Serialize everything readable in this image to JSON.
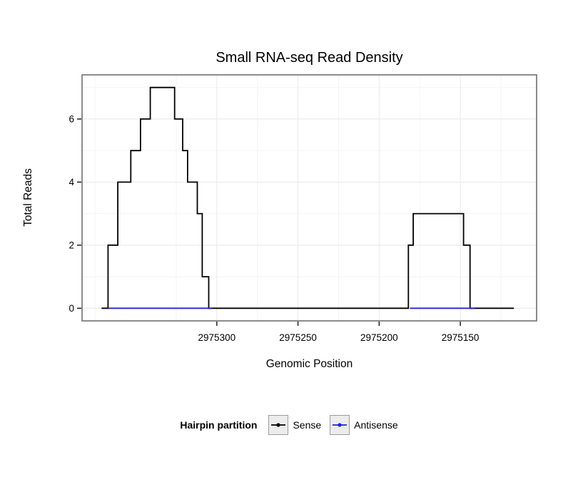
{
  "page": {
    "background": "#ffffff"
  },
  "title": "Small RNA-seq Read Density",
  "axes": {
    "x_label": "Genomic Position",
    "y_label": "Total Reads"
  },
  "legend": {
    "title": "Hairpin partition",
    "items": [
      {
        "label": "Sense",
        "color": "#000000"
      },
      {
        "label": "Antisense",
        "color": "#2323d6"
      }
    ]
  },
  "chart_data": {
    "type": "line",
    "subtype": "step-coverage",
    "title": "Small RNA-seq Read Density",
    "xlabel": "Genomic Position",
    "ylabel": "Total Reads",
    "x_axis_reversed": true,
    "x_domain": [
      2975383,
      2975103
    ],
    "y_domain": [
      -0.4,
      7.4
    ],
    "x_ticks": [
      2975300,
      2975250,
      2975200,
      2975150
    ],
    "x_minor_gridlines": [
      2975375,
      2975325,
      2975275,
      2975225,
      2975175,
      2975125
    ],
    "y_ticks": [
      0,
      2,
      4,
      6
    ],
    "y_minor_gridlines": [
      1,
      3,
      5,
      7
    ],
    "grid": true,
    "legend_position": "bottom",
    "style": {
      "line_width": 1.8,
      "grid_major_color": "#e8e8e8",
      "grid_minor_color": "#f4f4f4",
      "panel_border_color": "#7f7f7f",
      "tick_color": "#000000"
    },
    "series": [
      {
        "name": "Sense",
        "color": "#000000",
        "segments": [
          [
            [
              2975371,
              0
            ],
            [
              2975367,
              0
            ],
            [
              2975367,
              2
            ],
            [
              2975361,
              2
            ],
            [
              2975361,
              4
            ],
            [
              2975353,
              4
            ],
            [
              2975353,
              5
            ],
            [
              2975347,
              5
            ],
            [
              2975347,
              6
            ],
            [
              2975341,
              6
            ],
            [
              2975341,
              7
            ],
            [
              2975326,
              7
            ],
            [
              2975326,
              6
            ],
            [
              2975321,
              6
            ],
            [
              2975321,
              5
            ],
            [
              2975318,
              5
            ],
            [
              2975318,
              4
            ],
            [
              2975312,
              4
            ],
            [
              2975312,
              3
            ],
            [
              2975309,
              3
            ],
            [
              2975309,
              1
            ],
            [
              2975305,
              1
            ],
            [
              2975305,
              0
            ],
            [
              2975182,
              0
            ],
            [
              2975182,
              2
            ],
            [
              2975179,
              2
            ],
            [
              2975179,
              3
            ],
            [
              2975148,
              3
            ],
            [
              2975148,
              2
            ],
            [
              2975144,
              2
            ],
            [
              2975144,
              0
            ],
            [
              2975117,
              0
            ]
          ]
        ]
      },
      {
        "name": "Antisense",
        "color": "#2323d6",
        "segments": [
          [
            [
              2975367,
              0
            ],
            [
              2975303,
              0
            ]
          ],
          [
            [
              2975181,
              0
            ],
            [
              2975141,
              0
            ]
          ]
        ]
      }
    ]
  }
}
